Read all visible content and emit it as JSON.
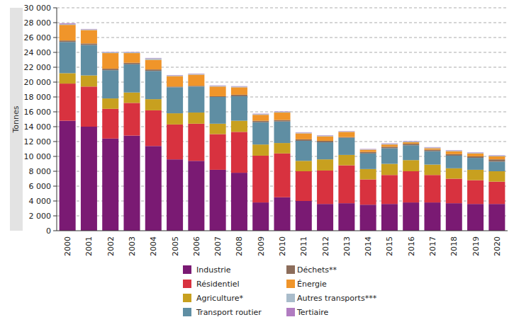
{
  "chart_data": {
    "type": "bar",
    "stacked": true,
    "grid": true,
    "legend": "bottom",
    "y_label": "Tonnes",
    "categories": [
      "2000",
      "2001",
      "2002",
      "2003",
      "2004",
      "2005",
      "2006",
      "2007",
      "2008",
      "2009",
      "2010",
      "2011",
      "2012",
      "2013",
      "2014",
      "2015",
      "2016",
      "2017",
      "2018",
      "2019",
      "2020"
    ],
    "ylim": [
      0,
      30000
    ],
    "yticks": [
      0,
      {
        "value": 2000,
        "label": "2 000"
      },
      {
        "value": 4000,
        "label": "4 000"
      },
      {
        "value": 6000,
        "label": "6 000"
      },
      {
        "value": 8000,
        "label": "8 000"
      },
      {
        "value": 10000,
        "label": "10 000"
      },
      {
        "value": 12000,
        "label": "12 000"
      },
      {
        "value": 14000,
        "label": "14 000"
      },
      {
        "value": 16000,
        "label": "16 000"
      },
      {
        "value": 18000,
        "label": "18 000"
      },
      {
        "value": 20000,
        "label": "20 000"
      },
      {
        "value": 22000,
        "label": "22 000"
      },
      {
        "value": 24000,
        "label": "24 000"
      },
      {
        "value": 26000,
        "label": "26 000"
      },
      {
        "value": 28000,
        "label": "28 000"
      },
      {
        "value": 30000,
        "label": "30 000"
      }
    ],
    "series": [
      {
        "name": "Industrie",
        "color": "#7a1a73",
        "values": [
          14800,
          14000,
          12400,
          12800,
          11400,
          9600,
          9400,
          8200,
          7800,
          3800,
          4500,
          4000,
          3600,
          3700,
          3500,
          3600,
          3800,
          3800,
          3700,
          3600,
          3600
        ]
      },
      {
        "name": "Résidentiel",
        "color": "#d8323f",
        "values": [
          5000,
          5400,
          4000,
          4400,
          4800,
          4700,
          5000,
          4800,
          5500,
          6300,
          5900,
          4000,
          4500,
          5100,
          3400,
          3900,
          4200,
          3700,
          3300,
          3200,
          3000
        ]
      },
      {
        "name": "Agriculture*",
        "color": "#c8a01f",
        "values": [
          1400,
          1500,
          1400,
          1400,
          1500,
          1500,
          1500,
          1400,
          1500,
          1500,
          1400,
          1400,
          1500,
          1400,
          1400,
          1500,
          1500,
          1400,
          1400,
          1400,
          1400
        ]
      },
      {
        "name": "Transport routier",
        "color": "#5f8ea3",
        "values": [
          4200,
          4100,
          3800,
          3800,
          3800,
          3500,
          3500,
          3600,
          3300,
          3000,
          2900,
          2700,
          2300,
          2300,
          2100,
          2100,
          2000,
          1800,
          1700,
          1600,
          1300
        ]
      },
      {
        "name": "Déchets**",
        "color": "#8c6d5b",
        "values": [
          200,
          200,
          200,
          200,
          200,
          100,
          100,
          100,
          200,
          200,
          200,
          200,
          200,
          100,
          200,
          200,
          200,
          200,
          200,
          200,
          300
        ]
      },
      {
        "name": "Énergie",
        "color": "#f0952a",
        "values": [
          2100,
          1800,
          2100,
          1300,
          1300,
          1400,
          1500,
          1300,
          1000,
          800,
          1000,
          800,
          600,
          700,
          300,
          300,
          200,
          200,
          400,
          400,
          400
        ]
      },
      {
        "name": "Autres transports***",
        "color": "#a9bccb",
        "values": [
          100,
          100,
          100,
          100,
          200,
          100,
          100,
          100,
          100,
          100,
          100,
          100,
          100,
          50,
          50,
          100,
          100,
          100,
          100,
          100,
          100
        ]
      },
      {
        "name": "Tertiaire",
        "color": "#b17cc1",
        "values": [
          100,
          50,
          50,
          50,
          50,
          50,
          50,
          50,
          50,
          50,
          50,
          50,
          50,
          50,
          50,
          50,
          50,
          50,
          50,
          50,
          50
        ]
      }
    ]
  }
}
